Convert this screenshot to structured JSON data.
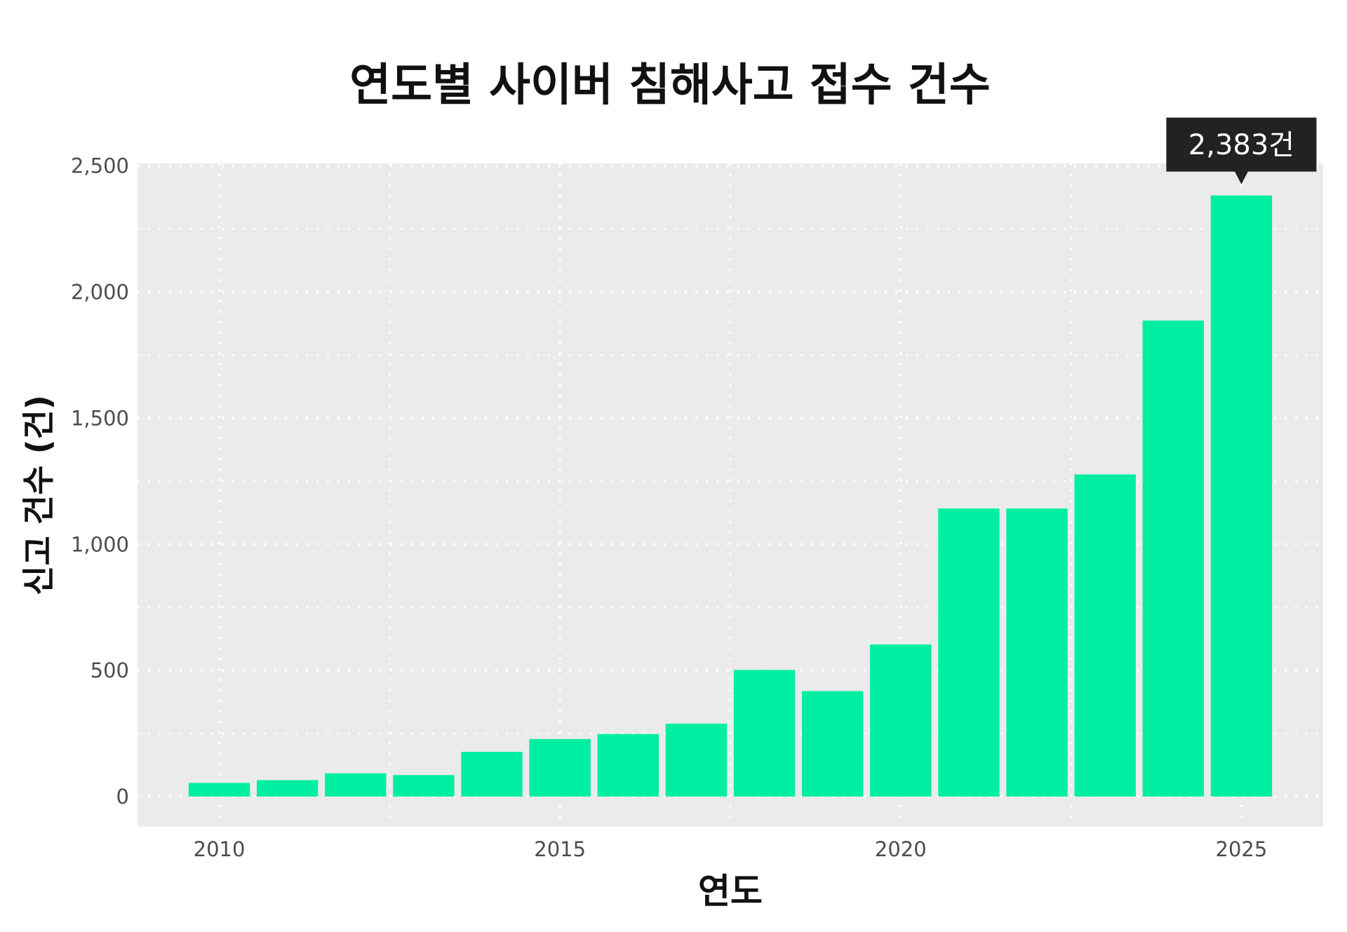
{
  "chart_data": {
    "type": "bar",
    "title": "연도별 사이버 침해사고 접수 건수",
    "xlabel": "연도",
    "ylabel": "신고 건수 (건)",
    "x": [
      2010,
      2011,
      2012,
      2013,
      2014,
      2015,
      2016,
      2017,
      2018,
      2019,
      2020,
      2021,
      2022,
      2023,
      2024,
      2025
    ],
    "values": [
      54,
      65,
      92,
      85,
      177,
      228,
      248,
      289,
      502,
      418,
      603,
      1142,
      1142,
      1277,
      1887,
      2383
    ],
    "xticks": [
      2010,
      2015,
      2020,
      2025
    ],
    "xtick_labels": [
      "2010",
      "2015",
      "2020",
      "2025"
    ],
    "yticks": [
      0,
      500,
      1000,
      1500,
      2000,
      2500
    ],
    "ytick_labels": [
      "0",
      "500",
      "1,000",
      "1,500",
      "2,000",
      "2,500"
    ],
    "xlim": [
      2008.8,
      2026.2
    ],
    "ylim": [
      -120,
      2510
    ],
    "grid": true,
    "annotation": {
      "x": 2025,
      "label": "2,383건"
    },
    "colors": {
      "bar": "#00EEA2",
      "panel": "#EBEBEB",
      "grid": "#FFFFFF",
      "annotation_bg": "#222222",
      "annotation_text": "#FFFFFF"
    }
  }
}
